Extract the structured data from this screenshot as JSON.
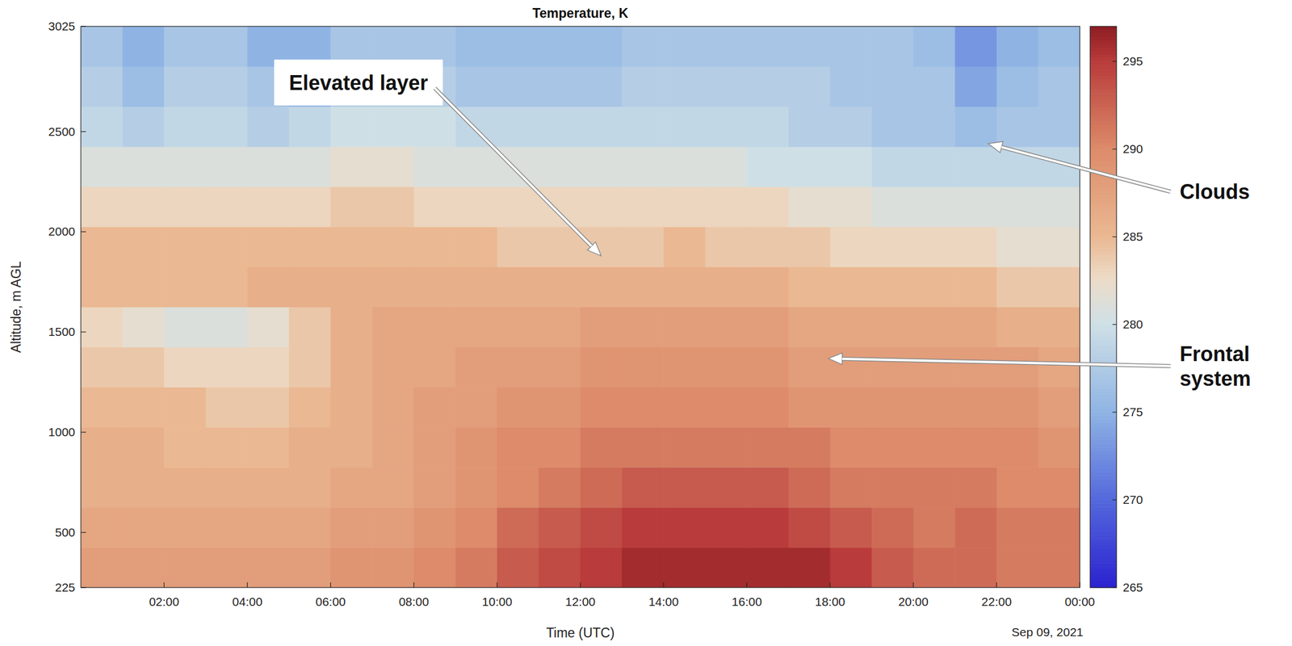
{
  "chart_data": {
    "type": "heatmap",
    "title": "Temperature, K",
    "x_label": "Time (UTC)",
    "y_label": "Altitude, m AGL",
    "x_date": "Sep 09, 2021",
    "x": [
      0.5,
      1.5,
      2.5,
      3.5,
      4.5,
      5.5,
      6.5,
      7.5,
      8.5,
      9.5,
      10.5,
      11.5,
      12.5,
      13.5,
      14.5,
      15.5,
      16.5,
      17.5,
      18.5,
      19.5,
      20.5,
      21.5,
      22.5,
      23.5
    ],
    "y": [
      325,
      525,
      725,
      925,
      1125,
      1325,
      1525,
      1725,
      1925,
      2125,
      2325,
      2525,
      2725,
      2925
    ],
    "values": [
      [
        288,
        288,
        288,
        288,
        288,
        288,
        289,
        289,
        290,
        291,
        293,
        294,
        295,
        296,
        296,
        296,
        296,
        296,
        295,
        293,
        292,
        292,
        291,
        291
      ],
      [
        287,
        287,
        287,
        287,
        287,
        287,
        288,
        288,
        289,
        290,
        292,
        293,
        294,
        295,
        295,
        295,
        295,
        294,
        293,
        292,
        291,
        292,
        291,
        291
      ],
      [
        286,
        286,
        286,
        286,
        286,
        286,
        287,
        287,
        288,
        289,
        290,
        291,
        292,
        293,
        293,
        293,
        293,
        292,
        291,
        291,
        291,
        291,
        290,
        290
      ],
      [
        286,
        286,
        285,
        285,
        285,
        286,
        286,
        287,
        288,
        289,
        290,
        290,
        291,
        291,
        291,
        291,
        291,
        291,
        290,
        290,
        290,
        290,
        290,
        289
      ],
      [
        285,
        285,
        285,
        284,
        284,
        285,
        286,
        287,
        288,
        288,
        289,
        289,
        290,
        290,
        290,
        290,
        290,
        289,
        289,
        289,
        289,
        289,
        289,
        288
      ],
      [
        284,
        284,
        283,
        283,
        283,
        284,
        286,
        287,
        287,
        288,
        288,
        288,
        289,
        289,
        289,
        289,
        289,
        288,
        288,
        288,
        288,
        288,
        288,
        287
      ],
      [
        283,
        282,
        281,
        281,
        282,
        284,
        286,
        287,
        287,
        287,
        287,
        287,
        288,
        288,
        288,
        288,
        288,
        287,
        287,
        287,
        287,
        287,
        286,
        286
      ],
      [
        285,
        285,
        285,
        285,
        286,
        286,
        286,
        286,
        286,
        286,
        286,
        286,
        286,
        286,
        286,
        286,
        286,
        285,
        285,
        285,
        285,
        285,
        284,
        284
      ],
      [
        285,
        285,
        285,
        285,
        285,
        285,
        285,
        285,
        285,
        285,
        284,
        284,
        284,
        284,
        285,
        284,
        284,
        284,
        283,
        283,
        283,
        283,
        282,
        282
      ],
      [
        283,
        283,
        283,
        283,
        283,
        283,
        284,
        284,
        283,
        283,
        283,
        283,
        283,
        283,
        283,
        283,
        283,
        282,
        282,
        281,
        281,
        281,
        281,
        281
      ],
      [
        281,
        281,
        281,
        281,
        281,
        281,
        282,
        282,
        281,
        281,
        281,
        281,
        281,
        281,
        281,
        281,
        280,
        280,
        280,
        279,
        279,
        279,
        279,
        279
      ],
      [
        279,
        278,
        279,
        279,
        278,
        279,
        280,
        280,
        280,
        279,
        279,
        279,
        279,
        279,
        279,
        279,
        279,
        278,
        278,
        277,
        277,
        276,
        277,
        277
      ],
      [
        278,
        276,
        278,
        278,
        277,
        276,
        278,
        278,
        278,
        277,
        277,
        277,
        277,
        278,
        278,
        278,
        278,
        278,
        277,
        277,
        277,
        274,
        276,
        277
      ],
      [
        277,
        275,
        277,
        277,
        275,
        275,
        277,
        277,
        277,
        276,
        276,
        276,
        276,
        277,
        277,
        277,
        277,
        277,
        277,
        277,
        276,
        273,
        275,
        276
      ]
    ],
    "xlim": [
      0,
      24
    ],
    "ylim": [
      225,
      3025
    ],
    "xticks": [
      {
        "value": 2,
        "label": "02:00"
      },
      {
        "value": 4,
        "label": "04:00"
      },
      {
        "value": 6,
        "label": "06:00"
      },
      {
        "value": 8,
        "label": "08:00"
      },
      {
        "value": 10,
        "label": "10:00"
      },
      {
        "value": 12,
        "label": "12:00"
      },
      {
        "value": 14,
        "label": "14:00"
      },
      {
        "value": 16,
        "label": "16:00"
      },
      {
        "value": 18,
        "label": "18:00"
      },
      {
        "value": 20,
        "label": "20:00"
      },
      {
        "value": 22,
        "label": "22:00"
      },
      {
        "value": 24,
        "label": "00:00"
      }
    ],
    "yticks": [
      225,
      500,
      1000,
      1500,
      2000,
      2500,
      3025
    ],
    "colorbar": {
      "range": [
        265,
        297
      ],
      "ticks": [
        265,
        270,
        275,
        280,
        285,
        290,
        295
      ]
    },
    "annotations": [
      {
        "text": "Elevated layer",
        "x": 12.5,
        "y": 1880,
        "label_x": 6.67,
        "label_y": 2745
      },
      {
        "text": "Clouds",
        "x": 21.8,
        "y": 2440,
        "label_x": 26.4,
        "label_y": 2200
      },
      {
        "text": "Frontal system",
        "x": 17.96,
        "y": 1368,
        "label_x": 26.4,
        "label_y": 1330
      }
    ]
  }
}
